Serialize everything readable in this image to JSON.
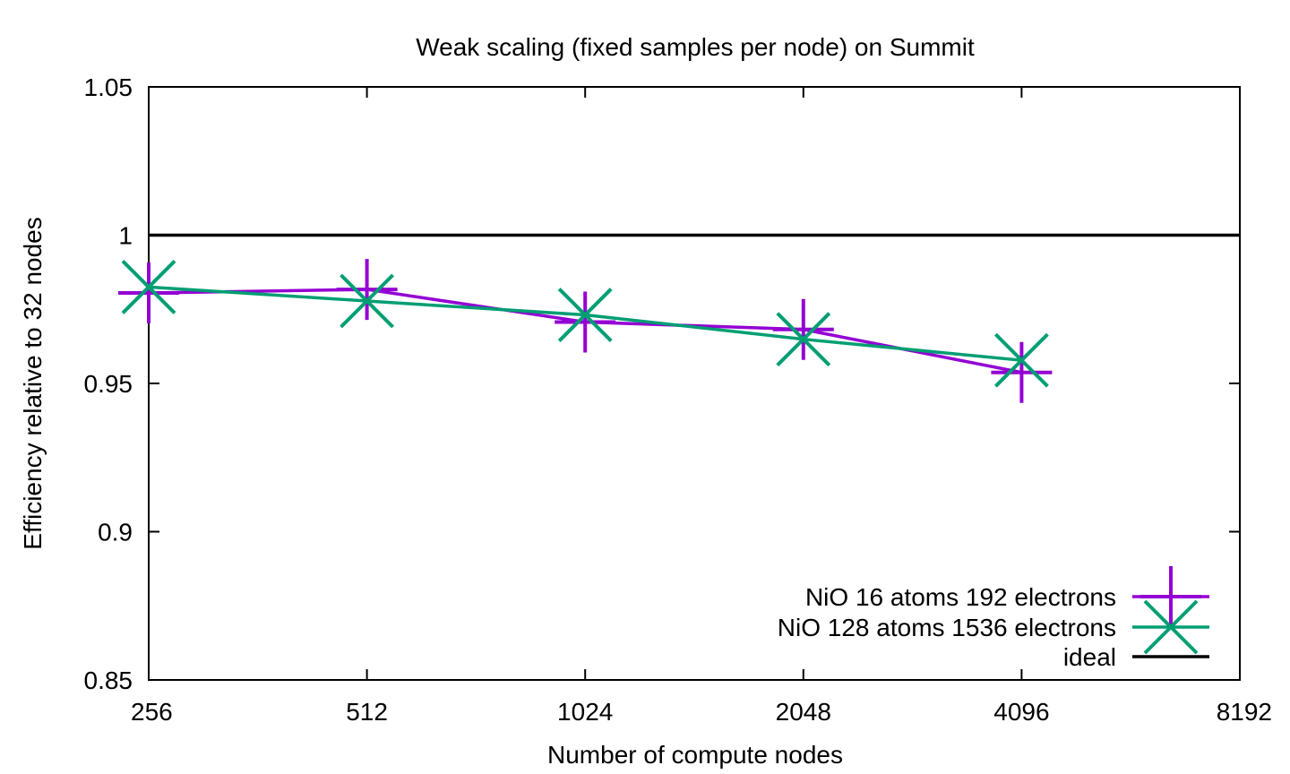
{
  "chart_data": {
    "type": "line",
    "title": "Weak scaling (fixed samples per node) on Summit",
    "xlabel": "Number of compute nodes",
    "ylabel": "Efficiency relative to 32 nodes",
    "x_scale": "log2",
    "xlim": [
      256,
      8192
    ],
    "ylim": [
      0.85,
      1.05
    ],
    "x_ticks": [
      "256",
      "512",
      "1024",
      "2048",
      "4096",
      "8192"
    ],
    "y_ticks": [
      "0.85",
      "0.9",
      "0.95",
      "1",
      "1.05"
    ],
    "grid": false,
    "legend_position": "bottom-right",
    "series": [
      {
        "name": "NiO 16 atoms 192 electrons",
        "color": "#9400d3",
        "marker": "plus",
        "x": [
          256,
          512,
          1024,
          2048,
          4096
        ],
        "y": [
          0.9805,
          0.9817,
          0.9707,
          0.9682,
          0.9537
        ]
      },
      {
        "name": "NiO 128 atoms 1536 electrons",
        "color": "#009e73",
        "marker": "cross",
        "x": [
          256,
          512,
          1024,
          2048,
          4096
        ],
        "y": [
          0.9825,
          0.9778,
          0.9731,
          0.9649,
          0.9578
        ]
      },
      {
        "name": "ideal",
        "color": "#000000",
        "marker": "none",
        "y_constant": 1.0
      }
    ]
  }
}
